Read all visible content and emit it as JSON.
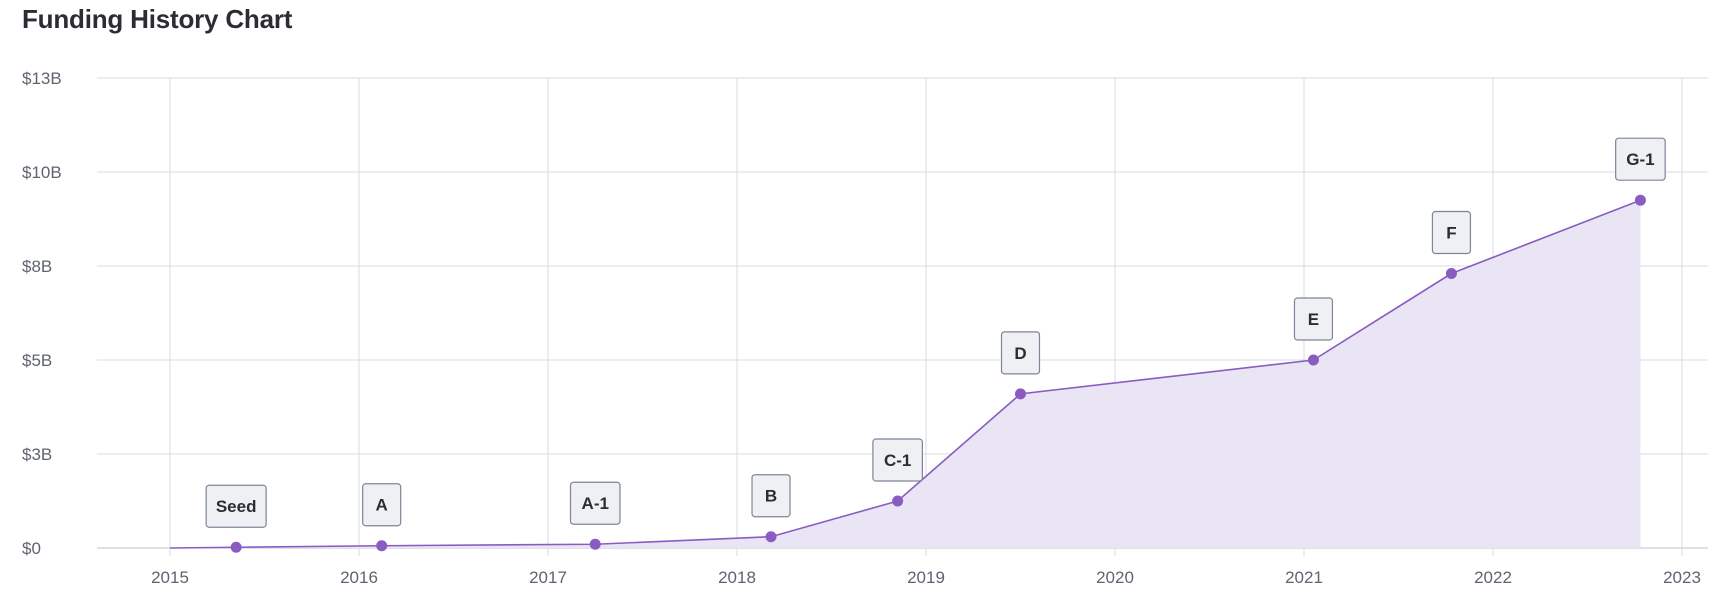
{
  "page": {
    "title": "Funding History Chart"
  },
  "chart_data": {
    "type": "area",
    "title": "Funding History Chart",
    "xlabel": "",
    "ylabel": "",
    "x_ticks": [
      "2015",
      "2016",
      "2017",
      "2018",
      "2019",
      "2020",
      "2021",
      "2022",
      "2023"
    ],
    "y_ticks": [
      {
        "value": 0,
        "label": "$0"
      },
      {
        "value": 2.5,
        "label": "$3B"
      },
      {
        "value": 5,
        "label": "$5B"
      },
      {
        "value": 7.5,
        "label": "$8B"
      },
      {
        "value": 10,
        "label": "$10B"
      },
      {
        "value": 12.5,
        "label": "$13B"
      }
    ],
    "xlim": [
      2014.6,
      2023.2
    ],
    "ylim": [
      0,
      12.5
    ],
    "y_unit": "$B",
    "grid": true,
    "line_color": "#8a5cc2",
    "fill_color": "#e9e5f5",
    "points": [
      {
        "round": "Seed",
        "x": 2015.35,
        "y": 0.02
      },
      {
        "round": "A",
        "x": 2016.12,
        "y": 0.06
      },
      {
        "round": "A-1",
        "x": 2017.25,
        "y": 0.1
      },
      {
        "round": "B",
        "x": 2018.18,
        "y": 0.3
      },
      {
        "round": "C-1",
        "x": 2018.85,
        "y": 1.25
      },
      {
        "round": "D",
        "x": 2019.5,
        "y": 4.1
      },
      {
        "round": "E",
        "x": 2021.05,
        "y": 5.0
      },
      {
        "round": "F",
        "x": 2021.78,
        "y": 7.3
      },
      {
        "round": "G-1",
        "x": 2022.78,
        "y": 9.25
      }
    ]
  }
}
